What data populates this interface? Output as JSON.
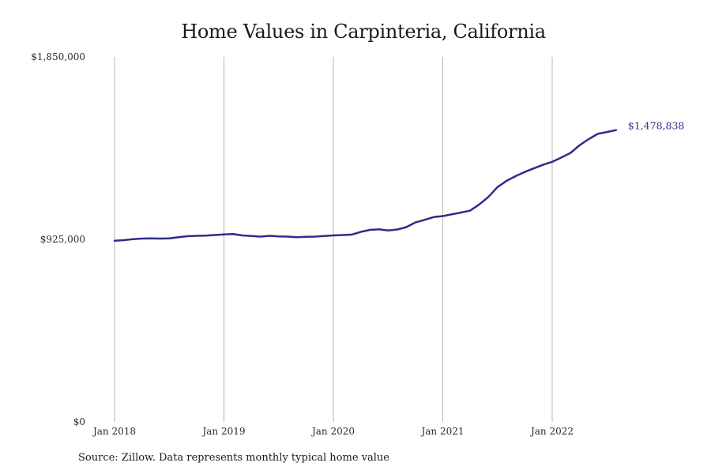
{
  "chart_data": {
    "type": "line",
    "title": "Home Values in Carpinteria, California",
    "xlabel": "",
    "ylabel": "",
    "source": "Source: Zillow. Data represents monthly typical home value",
    "ylim": [
      0,
      1850000
    ],
    "yticks": [
      {
        "value": 0,
        "label": "$0"
      },
      {
        "value": 925000,
        "label": "$925,000"
      },
      {
        "value": 1850000,
        "label": "$1,850,000"
      }
    ],
    "xticks": [
      {
        "date": "2018-01",
        "label": "Jan 2018"
      },
      {
        "date": "2019-01",
        "label": "Jan 2019"
      },
      {
        "date": "2020-01",
        "label": "Jan 2020"
      },
      {
        "date": "2021-01",
        "label": "Jan 2021"
      },
      {
        "date": "2022-01",
        "label": "Jan 2022"
      }
    ],
    "grid": "vertical",
    "line_color": "#2e2d8c",
    "end_label": "$1,478,838",
    "series": [
      {
        "x": [
          "2018-01",
          "2018-02",
          "2018-03",
          "2018-04",
          "2018-05",
          "2018-06",
          "2018-07",
          "2018-08",
          "2018-09",
          "2018-10",
          "2018-11",
          "2018-12",
          "2019-01",
          "2019-02",
          "2019-03",
          "2019-04",
          "2019-05",
          "2019-06",
          "2019-07",
          "2019-08",
          "2019-09",
          "2019-10",
          "2019-11",
          "2019-12",
          "2020-01",
          "2020-02",
          "2020-03",
          "2020-04",
          "2020-05",
          "2020-06",
          "2020-07",
          "2020-08",
          "2020-09",
          "2020-10",
          "2020-11",
          "2020-12",
          "2021-01",
          "2021-02",
          "2021-03",
          "2021-04",
          "2021-05",
          "2021-06",
          "2021-07",
          "2021-08",
          "2021-09",
          "2021-10",
          "2021-11",
          "2021-12",
          "2022-01",
          "2022-02",
          "2022-03",
          "2022-04",
          "2022-05",
          "2022-06",
          "2022-07",
          "2022-08"
        ],
        "values": [
          918000,
          921000,
          926000,
          929000,
          930000,
          929000,
          930000,
          936000,
          941000,
          943000,
          944000,
          947000,
          950000,
          952000,
          945000,
          942000,
          939000,
          943000,
          940000,
          939000,
          936000,
          938000,
          939000,
          942000,
          945000,
          947000,
          949000,
          963000,
          973000,
          976000,
          970000,
          975000,
          987000,
          1011000,
          1024000,
          1038000,
          1043000,
          1052000,
          1061000,
          1071000,
          1102000,
          1140000,
          1190000,
          1222000,
          1246000,
          1267000,
          1285000,
          1303000,
          1318000,
          1340000,
          1363000,
          1402000,
          1433000,
          1460000,
          1469000,
          1478838
        ]
      }
    ]
  }
}
